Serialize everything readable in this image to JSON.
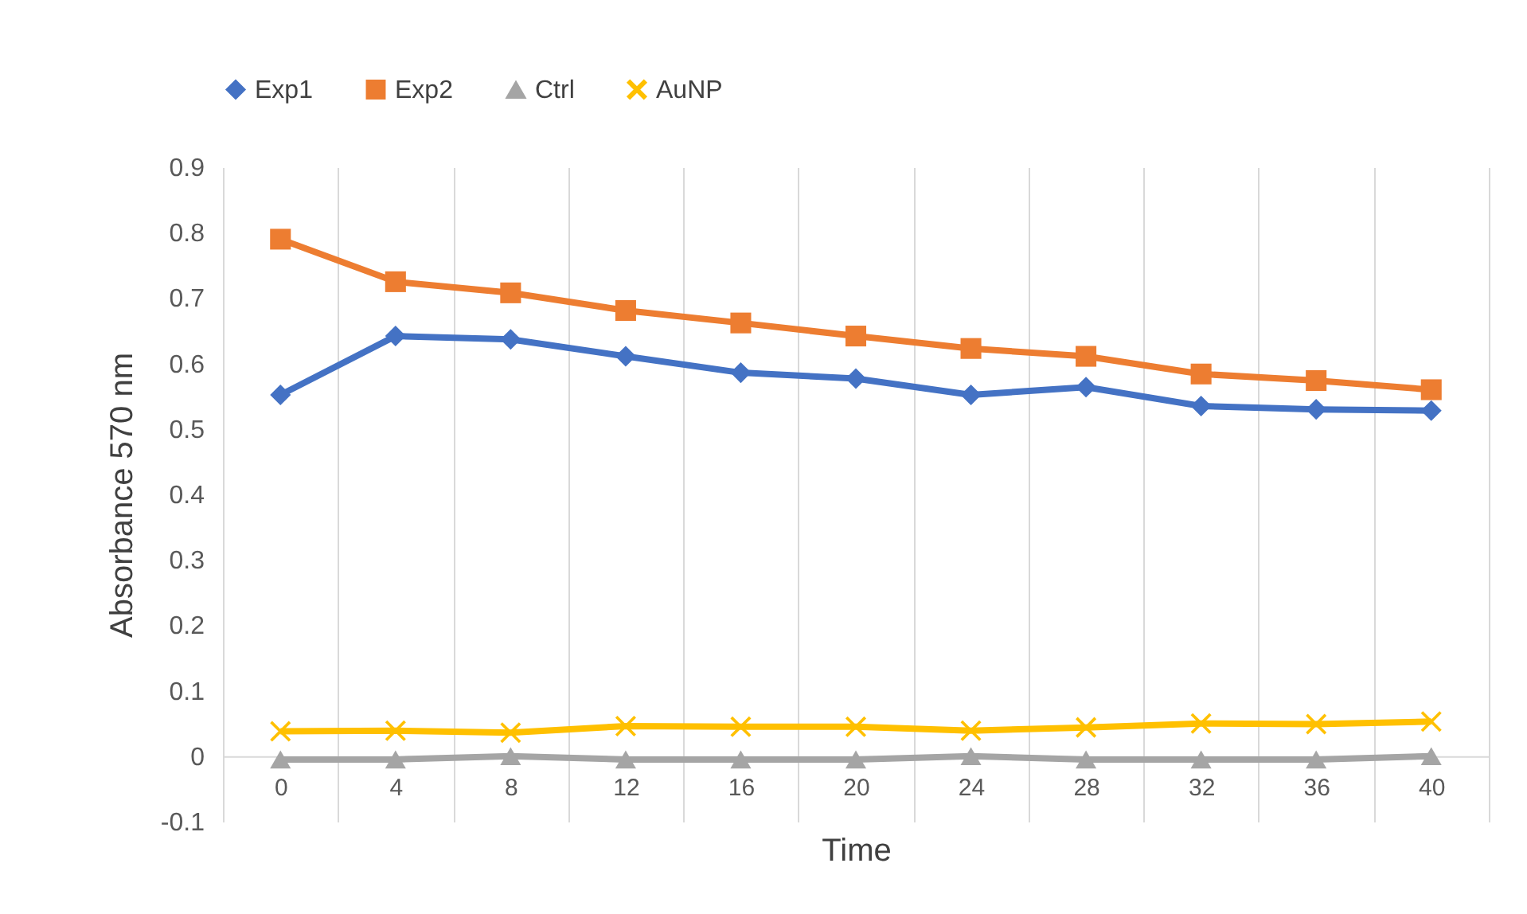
{
  "chart_data": {
    "type": "line",
    "xlabel": "Time",
    "ylabel": "Absorbance 570 nm",
    "categories": [
      "0",
      "4",
      "8",
      "12",
      "16",
      "20",
      "24",
      "28",
      "32",
      "36",
      "40"
    ],
    "series": [
      {
        "name": "Exp1",
        "color": "#4472c4",
        "marker": "diamond",
        "values": [
          0.552,
          0.642,
          0.637,
          0.611,
          0.586,
          0.577,
          0.552,
          0.564,
          0.535,
          0.53,
          0.528
        ]
      },
      {
        "name": "Exp2",
        "color": "#ed7d31",
        "marker": "square",
        "values": [
          0.79,
          0.725,
          0.708,
          0.681,
          0.662,
          0.642,
          0.623,
          0.611,
          0.584,
          0.574,
          0.56
        ]
      },
      {
        "name": "Ctrl",
        "color": "#a5a5a5",
        "marker": "triangle",
        "values": [
          -0.005,
          -0.005,
          0.0,
          -0.005,
          -0.005,
          -0.005,
          0.0,
          -0.005,
          -0.005,
          -0.005,
          0.0
        ]
      },
      {
        "name": "AuNP",
        "color": "#ffc000",
        "marker": "cross",
        "values": [
          0.038,
          0.039,
          0.036,
          0.046,
          0.045,
          0.045,
          0.039,
          0.044,
          0.05,
          0.049,
          0.053
        ]
      }
    ],
    "ylim": [
      -0.1,
      0.9
    ],
    "yticks": [
      -0.1,
      0,
      0.1,
      0.2,
      0.3,
      0.4,
      0.5,
      0.6,
      0.7,
      0.8,
      0.9
    ],
    "grid": "x",
    "legend": "top",
    "line_style": "solid"
  }
}
